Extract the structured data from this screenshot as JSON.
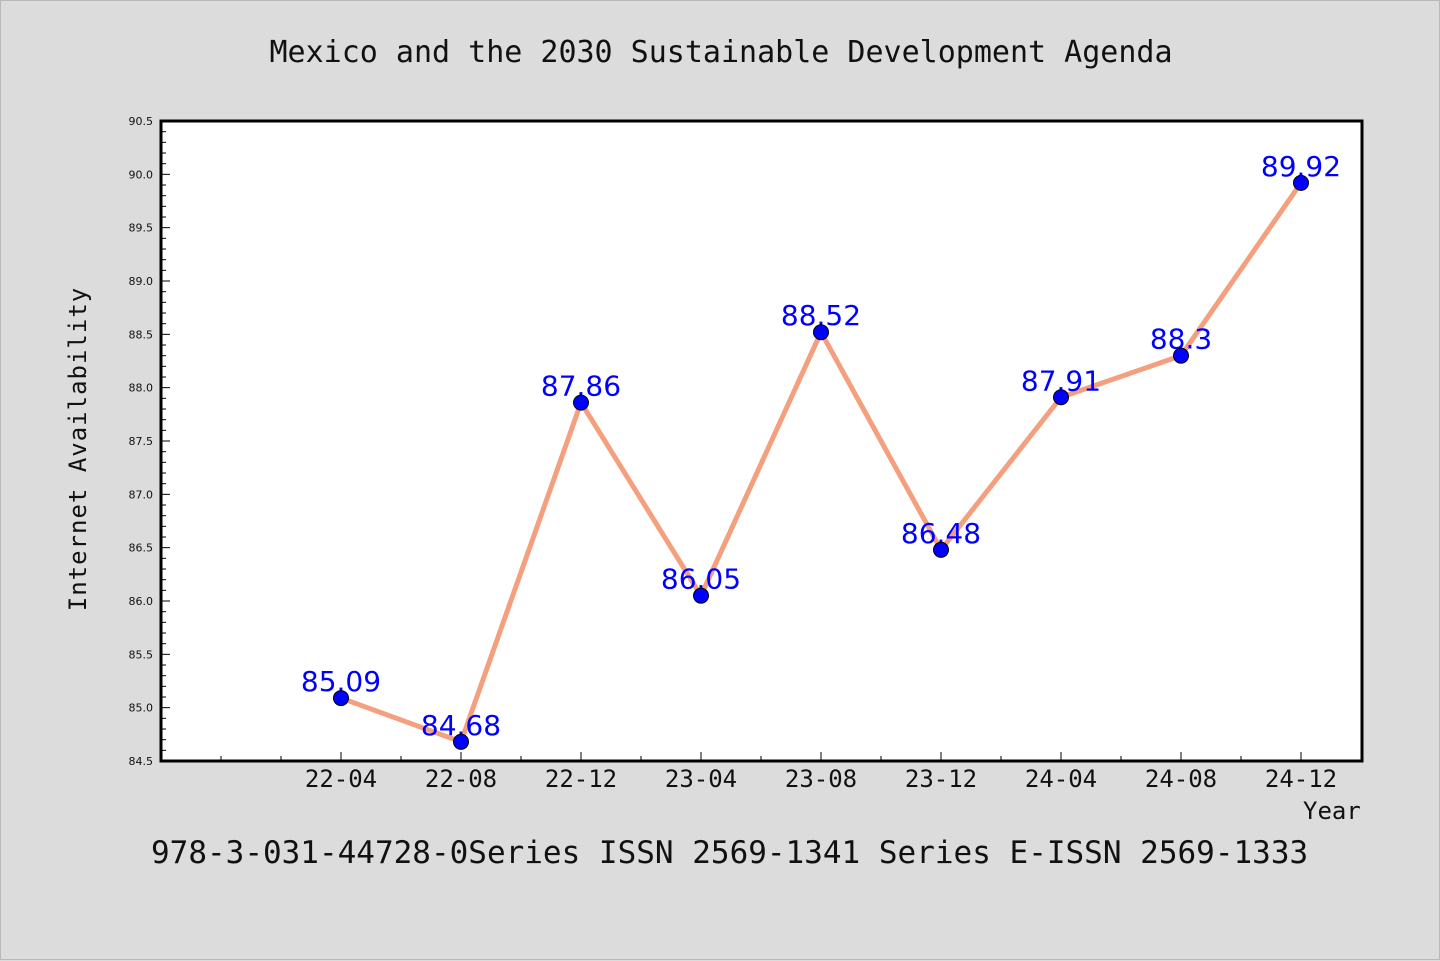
{
  "chart_data": {
    "type": "line",
    "title": "Mexico and the 2030 Sustainable Development Agenda",
    "xlabel": "Year",
    "ylabel": "Internet Availability",
    "categories": [
      "22-04",
      "22-08",
      "22-12",
      "23-04",
      "23-08",
      "23-12",
      "24-04",
      "24-08",
      "24-12"
    ],
    "series": [
      {
        "values": [
          85.09,
          84.68,
          87.86,
          86.05,
          88.52,
          86.48,
          87.91,
          88.3,
          89.92
        ],
        "labels": [
          "85.09",
          "84.68",
          "87.86",
          "86.05",
          "88.52",
          "86.48",
          "87.91",
          "88.3",
          "89.92"
        ]
      }
    ],
    "ylim": [
      84.5,
      90.5
    ],
    "yticks": [
      "84.5",
      "85.0",
      "85.5",
      "86.0",
      "86.5",
      "87.0",
      "87.5",
      "88.0",
      "88.5",
      "89.0",
      "89.5",
      "90.0",
      "90.5"
    ],
    "grid": false,
    "line_color": "#f4a07f",
    "marker_color": "#0000ff",
    "label_color": "#0000ff"
  },
  "footer": "978-3-031-44728-0Series ISSN 2569-1341 Series E-ISSN 2569-1333"
}
